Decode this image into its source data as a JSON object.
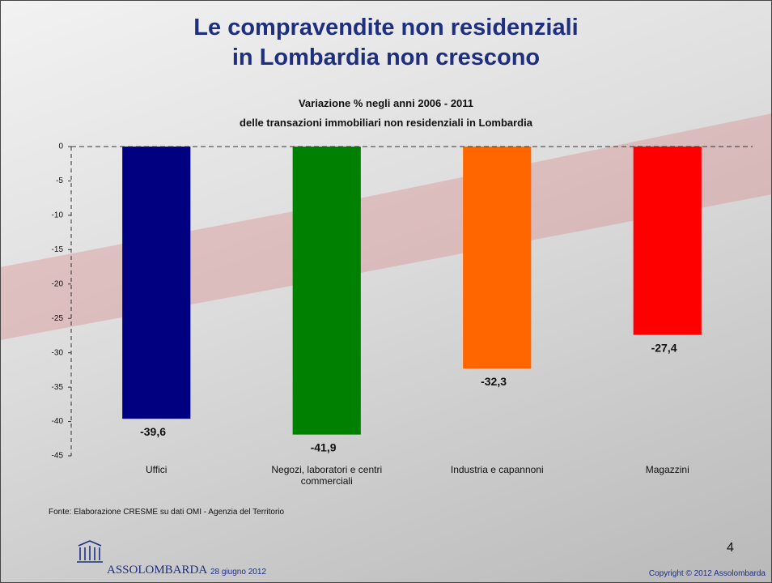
{
  "slide": {
    "title": [
      "Le compravendite non residenziali",
      "in Lombardia non crescono"
    ],
    "source": "Fonte: Elaborazione CRESME su dati OMI - Agenzia del Territorio",
    "page_number": "4",
    "logo": "ASSOLOMBARDA",
    "date": "28 giugno 2012",
    "copyright": "Copyright © 2012 Assolombarda"
  },
  "chart_data": {
    "type": "bar",
    "title": [
      "Variazione % negli anni 2006 - 2011",
      "delle transazioni immobiliari non residenziali in Lombardia"
    ],
    "categories": [
      "Uffici",
      "Negozi, laboratori e centri commerciali",
      "Industria e capannoni",
      "Magazzini"
    ],
    "values": [
      -39.6,
      -41.9,
      -32.3,
      -27.4
    ],
    "value_labels": [
      "-39,6",
      "-41,9",
      "-32,3",
      "-27,4"
    ],
    "colors": [
      "#000080",
      "#008000",
      "#ff6600",
      "#ff0000"
    ],
    "ylim": [
      -45,
      0
    ],
    "yticks": [
      0,
      -5,
      -10,
      -15,
      -20,
      -25,
      -30,
      -35,
      -40,
      -45
    ]
  }
}
